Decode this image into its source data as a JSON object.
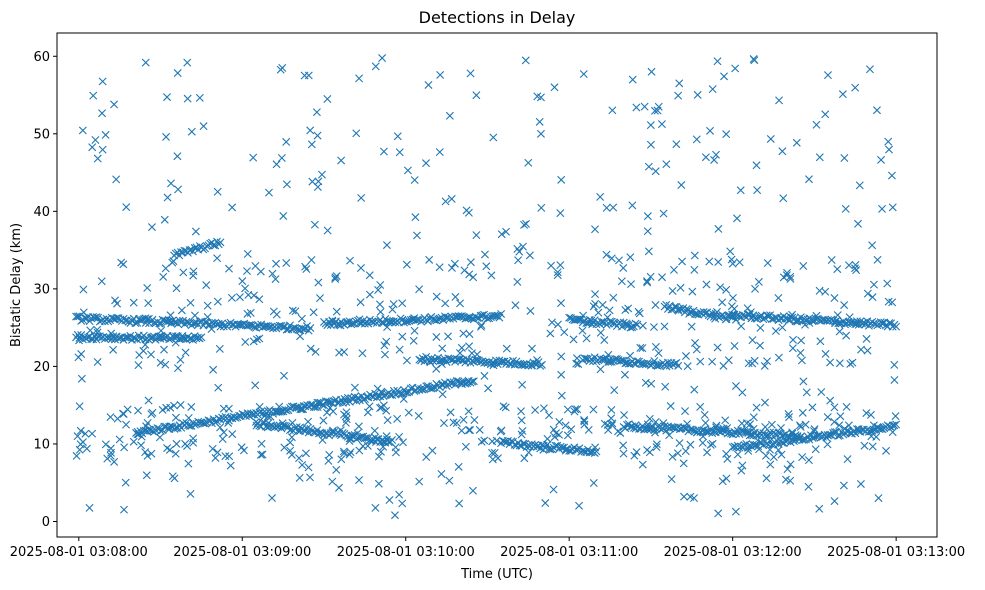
{
  "chart_data": {
    "type": "scatter",
    "title": "Detections in Delay",
    "xlabel": "Time (UTC)",
    "ylabel": "Bistatic Delay (km)",
    "marker": "x",
    "color": "#1f77b4",
    "grid": false,
    "legend": "none",
    "x_axis": {
      "type": "datetime",
      "range": [
        "2025-08-01 03:07:52",
        "2025-08-01 03:13:15"
      ],
      "ticks": [
        "2025-08-01 03:08:00",
        "2025-08-01 03:09:00",
        "2025-08-01 03:10:00",
        "2025-08-01 03:11:00",
        "2025-08-01 03:12:00",
        "2025-08-01 03:13:00"
      ]
    },
    "y_axis": {
      "range": [
        -2,
        63
      ],
      "ticks": [
        0,
        10,
        20,
        30,
        40,
        50,
        60
      ]
    },
    "tracks": [
      {
        "start": "2025-08-01 03:07:59",
        "end": "2025-08-01 03:09:25",
        "delay_start": 26.2,
        "delay_end": 24.9
      },
      {
        "start": "2025-08-01 03:07:59",
        "end": "2025-08-01 03:08:45",
        "delay_start": 23.8,
        "delay_end": 23.6
      },
      {
        "start": "2025-08-01 03:08:22",
        "end": "2025-08-01 03:10:25",
        "delay_start": 11.5,
        "delay_end": 18.2
      },
      {
        "start": "2025-08-01 03:08:35",
        "end": "2025-08-01 03:08:52",
        "delay_start": 34.3,
        "delay_end": 36.0
      },
      {
        "start": "2025-08-01 03:09:30",
        "end": "2025-08-01 03:10:35",
        "delay_start": 25.5,
        "delay_end": 26.5
      },
      {
        "start": "2025-08-01 03:09:05",
        "end": "2025-08-01 03:09:55",
        "delay_start": 12.6,
        "delay_end": 10.3
      },
      {
        "start": "2025-08-01 03:10:35",
        "end": "2025-08-01 03:11:10",
        "delay_start": 10.2,
        "delay_end": 9.0
      },
      {
        "start": "2025-08-01 03:11:00",
        "end": "2025-08-01 03:11:25",
        "delay_start": 26.0,
        "delay_end": 25.2
      },
      {
        "start": "2025-08-01 03:11:20",
        "end": "2025-08-01 03:12:25",
        "delay_start": 12.3,
        "delay_end": 11.0
      },
      {
        "start": "2025-08-01 03:11:35",
        "end": "2025-08-01 03:12:00",
        "delay_start": 27.7,
        "delay_end": 26.2
      },
      {
        "start": "2025-08-01 03:12:00",
        "end": "2025-08-01 03:13:00",
        "delay_start": 26.6,
        "delay_end": 25.3
      },
      {
        "start": "2025-08-01 03:12:00",
        "end": "2025-08-01 03:13:00",
        "delay_start": 9.5,
        "delay_end": 12.3
      },
      {
        "start": "2025-08-01 03:10:05",
        "end": "2025-08-01 03:10:50",
        "delay_start": 21.0,
        "delay_end": 20.3
      },
      {
        "start": "2025-08-01 03:11:05",
        "end": "2025-08-01 03:11:40",
        "delay_start": 21.0,
        "delay_end": 20.2
      }
    ],
    "scatter_density": {
      "range": [
        "2025-08-01 03:07:59",
        "2025-08-01 03:13:00"
      ],
      "delay_range": [
        0.8,
        59.8
      ],
      "points": 900
    }
  }
}
